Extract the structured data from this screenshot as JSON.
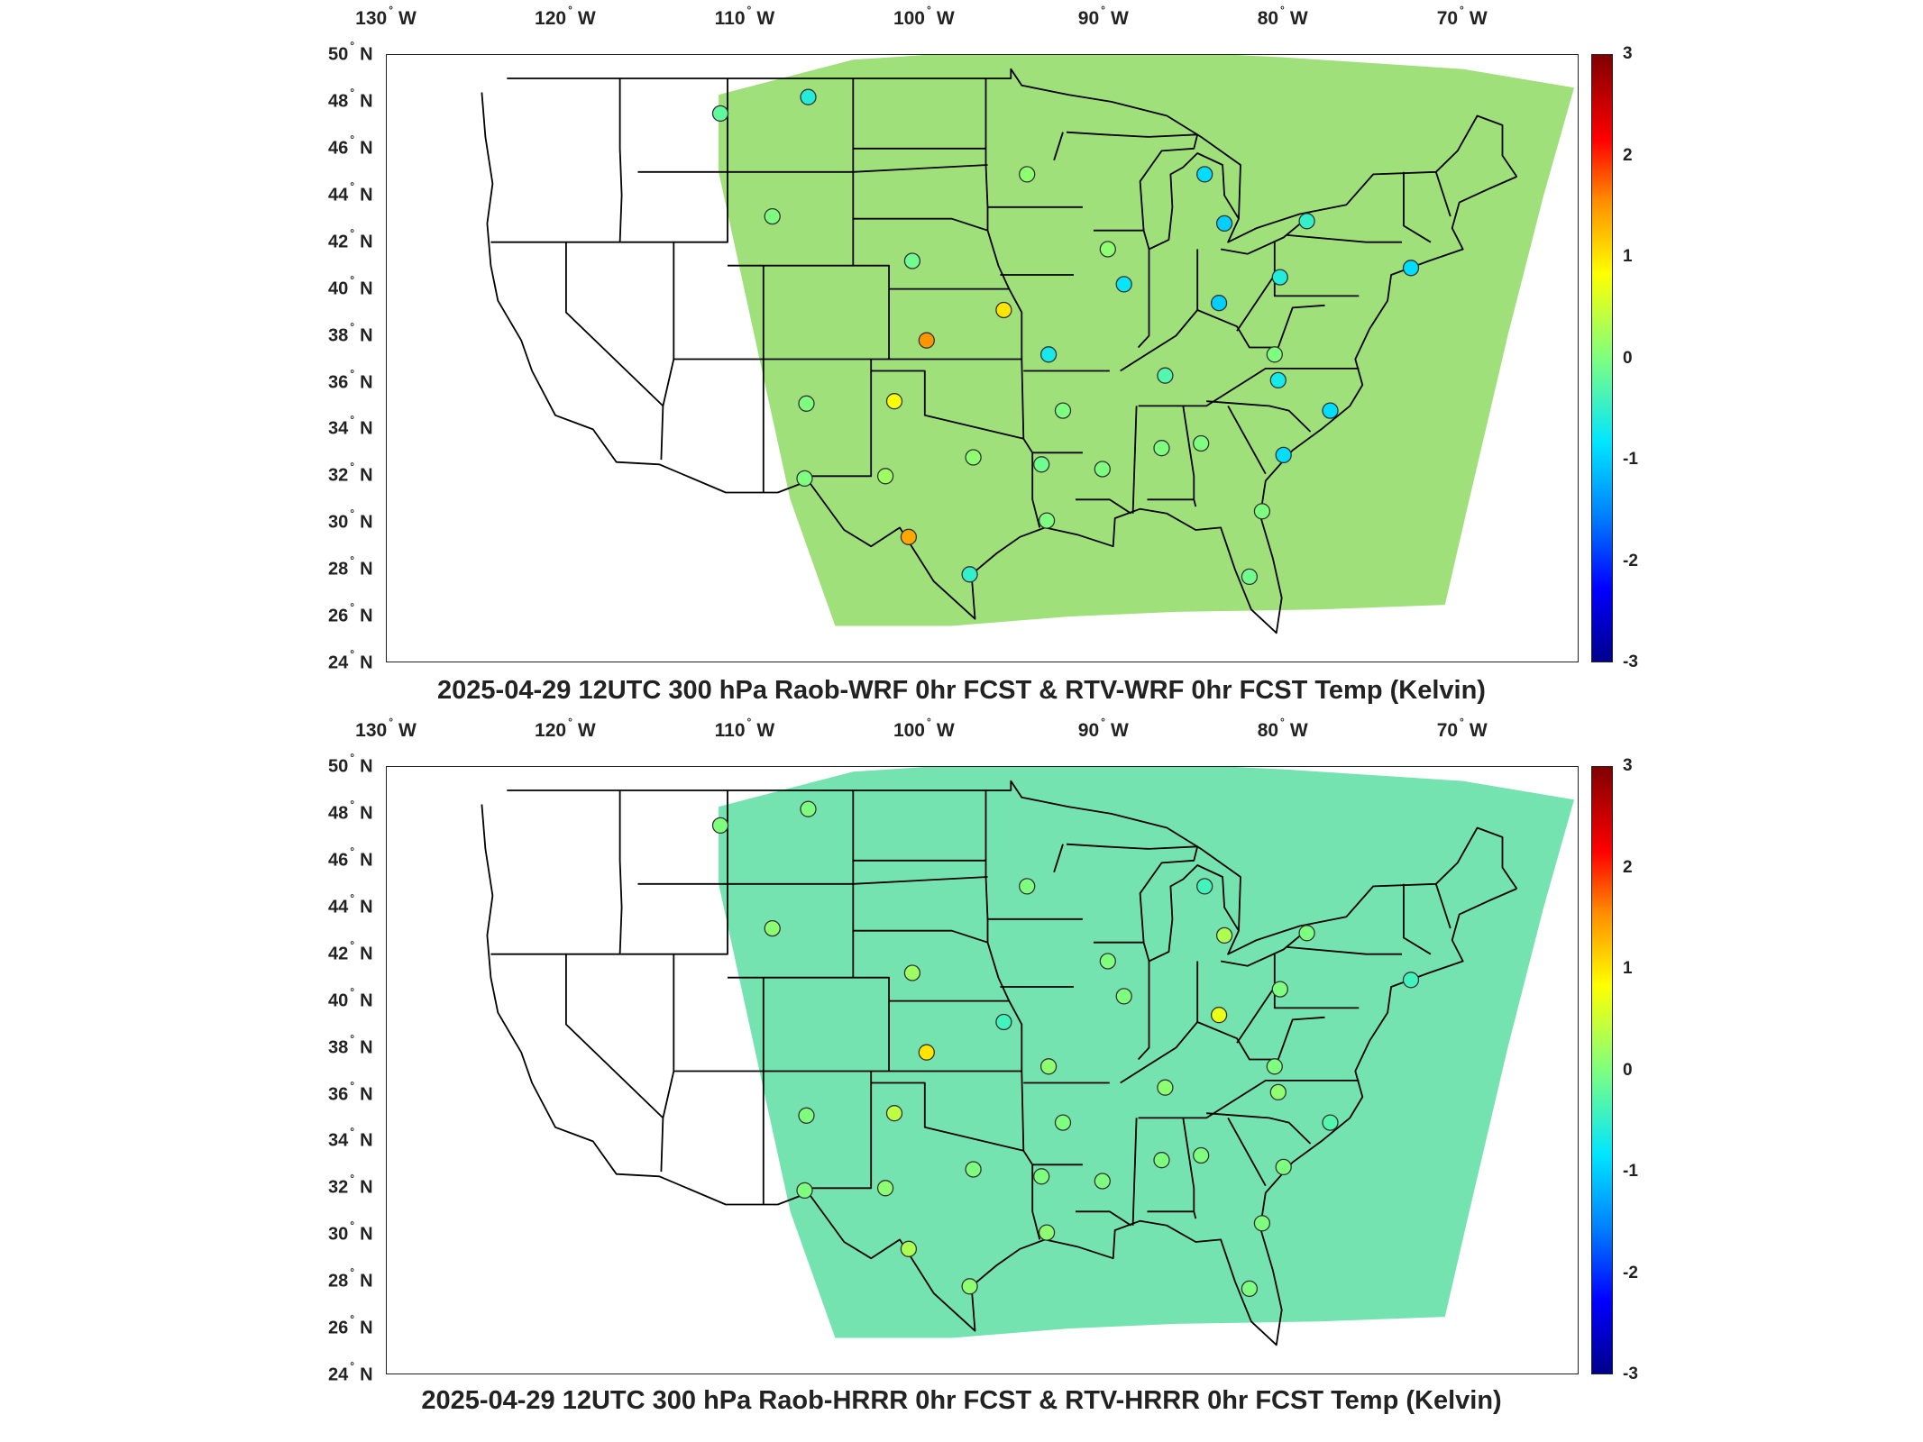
{
  "lon_labels": [
    "130",
    "120",
    "110",
    "100",
    "90",
    "80",
    "70"
  ],
  "lon_suffix": "W",
  "lat_labels": [
    "50",
    "48",
    "46",
    "44",
    "42",
    "40",
    "38",
    "36",
    "34",
    "32",
    "30",
    "28",
    "26",
    "24"
  ],
  "lat_suffix": "N",
  "colorbar": {
    "ticks": [
      "3",
      "2",
      "1",
      "0",
      "-1",
      "-2",
      "-3"
    ],
    "min": -3,
    "max": 3
  },
  "panels": [
    {
      "title": "2025-04-29 12UTC 300 hPa Raob-WRF 0hr FCST & RTV-WRF 0hr FCST Temp (Kelvin)",
      "field_color": "#9fe07a",
      "stations": [
        {
          "lon": -111.4,
          "lat": 47.5,
          "value": -0.2
        },
        {
          "lon": -106.5,
          "lat": 48.2,
          "value": -0.6
        },
        {
          "lon": -108.5,
          "lat": 43.1,
          "value": 0.0
        },
        {
          "lon": -100.7,
          "lat": 41.2,
          "value": -0.1
        },
        {
          "lon": -94.3,
          "lat": 44.9,
          "value": 0.1
        },
        {
          "lon": -95.6,
          "lat": 39.1,
          "value": 1.0
        },
        {
          "lon": -99.9,
          "lat": 37.8,
          "value": 1.5
        },
        {
          "lon": -93.1,
          "lat": 37.2,
          "value": -0.7
        },
        {
          "lon": -106.6,
          "lat": 35.1,
          "value": 0.0
        },
        {
          "lon": -101.7,
          "lat": 35.2,
          "value": 0.8
        },
        {
          "lon": -97.3,
          "lat": 32.8,
          "value": 0.1
        },
        {
          "lon": -102.2,
          "lat": 32.0,
          "value": 0.2
        },
        {
          "lon": -106.7,
          "lat": 31.9,
          "value": 0.0
        },
        {
          "lon": -100.9,
          "lat": 29.4,
          "value": 1.4
        },
        {
          "lon": -97.5,
          "lat": 27.8,
          "value": -0.5
        },
        {
          "lon": -93.5,
          "lat": 32.5,
          "value": -0.1
        },
        {
          "lon": -92.3,
          "lat": 34.8,
          "value": 0.0
        },
        {
          "lon": -93.2,
          "lat": 30.1,
          "value": 0.0
        },
        {
          "lon": -90.1,
          "lat": 32.3,
          "value": 0.0
        },
        {
          "lon": -86.8,
          "lat": 33.2,
          "value": 0.0
        },
        {
          "lon": -84.6,
          "lat": 33.4,
          "value": 0.0
        },
        {
          "lon": -81.2,
          "lat": 30.5,
          "value": 0.0
        },
        {
          "lon": -81.9,
          "lat": 27.7,
          "value": -0.1
        },
        {
          "lon": -80.0,
          "lat": 32.9,
          "value": -0.9
        },
        {
          "lon": -77.4,
          "lat": 34.8,
          "value": -0.9
        },
        {
          "lon": -80.3,
          "lat": 36.1,
          "value": -0.7
        },
        {
          "lon": -80.5,
          "lat": 37.2,
          "value": 0.0
        },
        {
          "lon": -86.6,
          "lat": 36.3,
          "value": -0.3
        },
        {
          "lon": -88.9,
          "lat": 40.2,
          "value": -0.8
        },
        {
          "lon": -83.6,
          "lat": 39.4,
          "value": -1.0
        },
        {
          "lon": -80.2,
          "lat": 40.5,
          "value": -0.6
        },
        {
          "lon": -84.4,
          "lat": 44.9,
          "value": -0.9
        },
        {
          "lon": -83.3,
          "lat": 42.8,
          "value": -1.0
        },
        {
          "lon": -78.7,
          "lat": 42.9,
          "value": -0.5
        },
        {
          "lon": -89.8,
          "lat": 41.7,
          "value": 0.1
        },
        {
          "lon": -72.9,
          "lat": 40.9,
          "value": -0.9
        }
      ]
    },
    {
      "title": "2025-04-29 12UTC 300 hPa Raob-HRRR 0hr FCST & RTV-HRRR 0hr FCST Temp (Kelvin)",
      "field_color": "#74e3b0",
      "stations": [
        {
          "lon": -111.4,
          "lat": 47.5,
          "value": 0.0
        },
        {
          "lon": -106.5,
          "lat": 48.2,
          "value": 0.0
        },
        {
          "lon": -108.5,
          "lat": 43.1,
          "value": 0.1
        },
        {
          "lon": -100.7,
          "lat": 41.2,
          "value": 0.2
        },
        {
          "lon": -94.3,
          "lat": 44.9,
          "value": 0.0
        },
        {
          "lon": -95.6,
          "lat": 39.1,
          "value": -0.4
        },
        {
          "lon": -99.9,
          "lat": 37.8,
          "value": 1.0
        },
        {
          "lon": -93.1,
          "lat": 37.2,
          "value": 0.1
        },
        {
          "lon": -106.6,
          "lat": 35.1,
          "value": 0.0
        },
        {
          "lon": -101.7,
          "lat": 35.2,
          "value": 0.4
        },
        {
          "lon": -97.3,
          "lat": 32.8,
          "value": 0.0
        },
        {
          "lon": -102.2,
          "lat": 32.0,
          "value": 0.1
        },
        {
          "lon": -106.7,
          "lat": 31.9,
          "value": 0.0
        },
        {
          "lon": -100.9,
          "lat": 29.4,
          "value": 0.3
        },
        {
          "lon": -97.5,
          "lat": 27.8,
          "value": 0.1
        },
        {
          "lon": -93.5,
          "lat": 32.5,
          "value": 0.0
        },
        {
          "lon": -92.3,
          "lat": 34.8,
          "value": 0.0
        },
        {
          "lon": -93.2,
          "lat": 30.1,
          "value": 0.1
        },
        {
          "lon": -90.1,
          "lat": 32.3,
          "value": 0.0
        },
        {
          "lon": -86.8,
          "lat": 33.2,
          "value": 0.0
        },
        {
          "lon": -84.6,
          "lat": 33.4,
          "value": 0.0
        },
        {
          "lon": -81.2,
          "lat": 30.5,
          "value": 0.0
        },
        {
          "lon": -81.9,
          "lat": 27.7,
          "value": 0.0
        },
        {
          "lon": -80.0,
          "lat": 32.9,
          "value": 0.0
        },
        {
          "lon": -77.4,
          "lat": 34.8,
          "value": -0.3
        },
        {
          "lon": -80.3,
          "lat": 36.1,
          "value": 0.1
        },
        {
          "lon": -80.5,
          "lat": 37.2,
          "value": 0.0
        },
        {
          "lon": -86.6,
          "lat": 36.3,
          "value": 0.1
        },
        {
          "lon": -88.9,
          "lat": 40.2,
          "value": 0.0
        },
        {
          "lon": -83.6,
          "lat": 39.4,
          "value": 0.7
        },
        {
          "lon": -80.2,
          "lat": 40.5,
          "value": 0.0
        },
        {
          "lon": -84.4,
          "lat": 44.9,
          "value": -0.4
        },
        {
          "lon": -83.3,
          "lat": 42.8,
          "value": 0.3
        },
        {
          "lon": -78.7,
          "lat": 42.9,
          "value": 0.0
        },
        {
          "lon": -89.8,
          "lat": 41.7,
          "value": 0.0
        },
        {
          "lon": -72.9,
          "lat": 40.9,
          "value": -0.4
        }
      ]
    }
  ]
}
